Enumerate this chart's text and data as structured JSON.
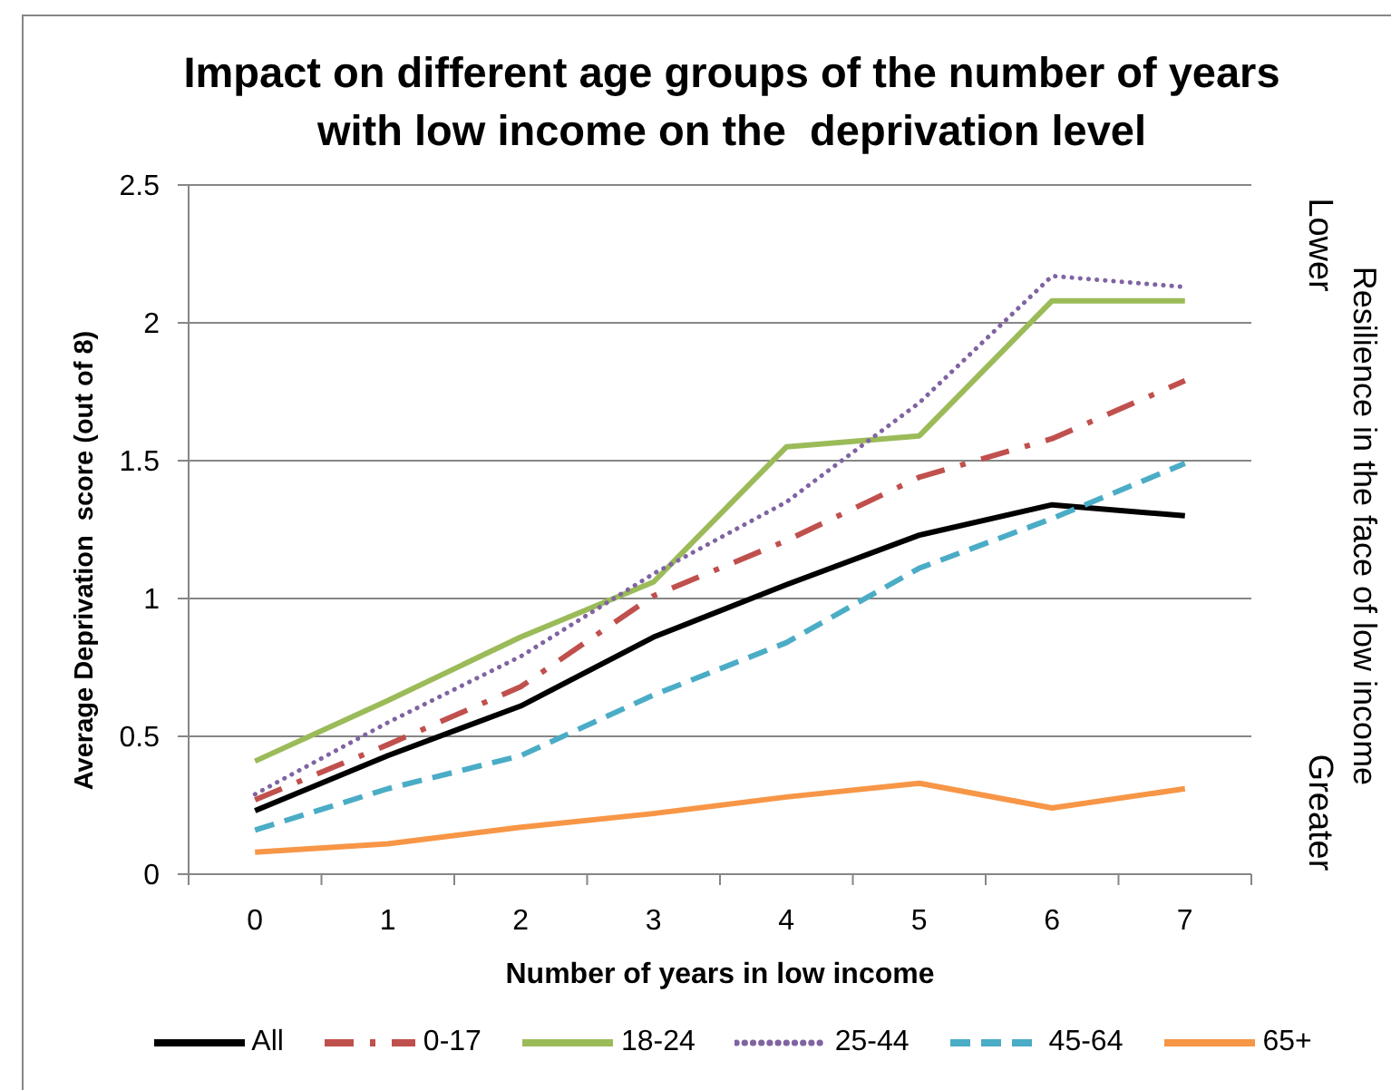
{
  "chart_data": {
    "type": "line",
    "title": "Impact on different age groups of the number of years\nwith low income on the  deprivation level",
    "xlabel": "Number of years in low income",
    "ylabel": "Average Deprivation  score (out of 8)",
    "y2label": "Resilience in the face of low income",
    "annotations": [
      "Lower",
      "Greater"
    ],
    "categories": [
      "0",
      "1",
      "2",
      "3",
      "4",
      "5",
      "6",
      "7"
    ],
    "series": [
      {
        "name": "All",
        "color": "#000000",
        "line_style": "solid",
        "values": [
          0.23,
          0.43,
          0.61,
          0.86,
          1.05,
          1.23,
          1.34,
          1.3
        ]
      },
      {
        "name": "0-17",
        "color": "#c0504d",
        "line_style": "dashdot",
        "values": [
          0.27,
          0.47,
          0.68,
          1.01,
          1.21,
          1.44,
          1.58,
          1.79
        ]
      },
      {
        "name": "18-24",
        "color": "#9bbb59",
        "line_style": "solid",
        "values": [
          0.41,
          0.63,
          0.86,
          1.06,
          1.55,
          1.59,
          2.08,
          2.08
        ]
      },
      {
        "name": "25-44",
        "color": "#8064a2",
        "line_style": "dotted",
        "values": [
          0.29,
          0.55,
          0.79,
          1.09,
          1.35,
          1.71,
          2.17,
          2.13
        ]
      },
      {
        "name": "45-64",
        "color": "#4bacc6",
        "line_style": "dashed",
        "values": [
          0.16,
          0.31,
          0.43,
          0.65,
          0.84,
          1.11,
          1.29,
          1.49
        ]
      },
      {
        "name": "65+",
        "color": "#f79646",
        "line_style": "solid",
        "values": [
          0.08,
          0.11,
          0.17,
          0.22,
          0.28,
          0.33,
          0.24,
          0.31
        ]
      }
    ],
    "ylim": [
      0,
      2.5
    ],
    "yticks": [
      0,
      0.5,
      1,
      1.5,
      2,
      2.5
    ],
    "grid": "y",
    "legend": "bottom",
    "marker": "none"
  }
}
